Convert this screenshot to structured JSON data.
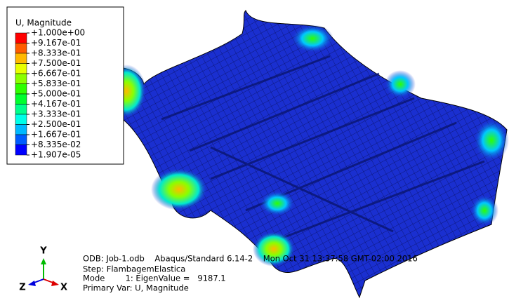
{
  "legend": {
    "title": "U, Magnitude",
    "labels": [
      "+1.000e+00",
      "+9.167e-01",
      "+8.333e-01",
      "+7.500e-01",
      "+6.667e-01",
      "+5.833e-01",
      "+5.000e-01",
      "+4.167e-01",
      "+3.333e-01",
      "+2.500e-01",
      "+1.667e-01",
      "+8.335e-02",
      "+1.907e-05"
    ],
    "colors": [
      "#ff0000",
      "#ff5c00",
      "#ffb900",
      "#e8ff00",
      "#8bff00",
      "#2eff00",
      "#00ff2e",
      "#00ff8b",
      "#00ffe8",
      "#00b9ff",
      "#005cff",
      "#0000ff"
    ]
  },
  "triad": {
    "y": "Y",
    "z": "Z",
    "x": "X"
  },
  "info": {
    "odb": "ODB: Job-1.odb    Abaqus/Standard 6.14-2    Mon Oct 31 13:37:58 GMT-02:00 2016",
    "step": "Step: FlambagemElastica",
    "mode": "Mode        1: EigenValue =   9187.1",
    "primary": "Primary Var: U, Magnitude"
  }
}
